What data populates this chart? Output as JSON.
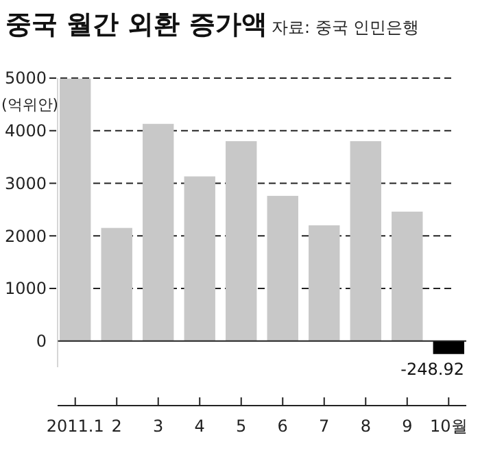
{
  "chart_data": {
    "type": "bar",
    "title": "중국 월간 외환 증가액",
    "subtitle": "자료: 중국 인민은행",
    "ylabel": "(억위안)",
    "categories": [
      "2011.1",
      "2",
      "3",
      "4",
      "5",
      "6",
      "7",
      "8",
      "9",
      "10월"
    ],
    "values": [
      4990,
      2150,
      4130,
      3130,
      3800,
      2760,
      2200,
      3800,
      2460,
      -248.92
    ],
    "colors": [
      "#c8c8c8",
      "#c8c8c8",
      "#c8c8c8",
      "#c8c8c8",
      "#c8c8c8",
      "#c8c8c8",
      "#c8c8c8",
      "#c8c8c8",
      "#c8c8c8",
      "#000000"
    ],
    "value_labels": [
      null,
      null,
      null,
      null,
      null,
      null,
      null,
      null,
      null,
      "-248.92"
    ],
    "ylim": [
      -500,
      5000
    ],
    "yticks": [
      0,
      1000,
      2000,
      3000,
      4000,
      5000
    ],
    "grid": "y"
  }
}
